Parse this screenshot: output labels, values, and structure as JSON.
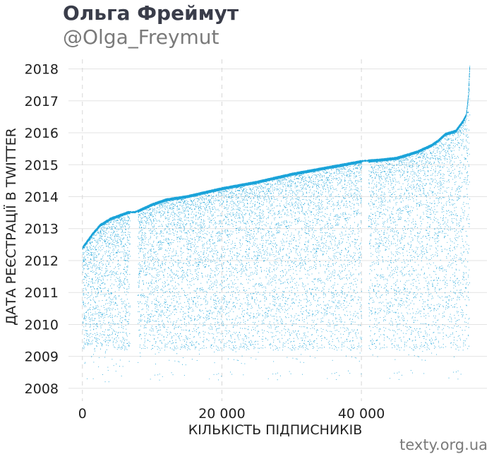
{
  "header": {
    "title": "Ольга Фреймут",
    "subtitle": "@Olga_Freymut"
  },
  "footer": {
    "source": "texty.org.ua"
  },
  "chart_data": {
    "type": "scatter",
    "xlabel": "КІЛЬКІСТЬ ПІДПИСНИКІВ",
    "ylabel": "ДАТА РЕЄСТРАЦІЇ В TWITTER",
    "xlim": [
      -2000,
      58000
    ],
    "ylim": [
      2007.6,
      2018.3
    ],
    "x_ticks": [
      0,
      20000,
      40000
    ],
    "x_tick_labels": [
      "0",
      "20 000",
      "40 000"
    ],
    "y_ticks": [
      2008,
      2009,
      2010,
      2011,
      2012,
      2013,
      2014,
      2015,
      2016,
      2017,
      2018
    ],
    "y_tick_labels": [
      "2018",
      "2017",
      "2016",
      "2015",
      "2014",
      "2013",
      "2012",
      "2011",
      "2010",
      "2009",
      "2008"
    ],
    "grid": {
      "horizontal": true,
      "vertical_dashed": true
    },
    "point_color": "#1aa3d9",
    "total_followers": 55500,
    "upper_envelope": [
      [
        0,
        2012.45
      ],
      [
        500,
        2012.6
      ],
      [
        1500,
        2012.9
      ],
      [
        2500,
        2013.15
      ],
      [
        4000,
        2013.35
      ],
      [
        6500,
        2013.55
      ],
      [
        7500,
        2013.55
      ],
      [
        8000,
        2013.6
      ],
      [
        10000,
        2013.8
      ],
      [
        12000,
        2013.95
      ],
      [
        15000,
        2014.05
      ],
      [
        20000,
        2014.3
      ],
      [
        25000,
        2014.5
      ],
      [
        30000,
        2014.75
      ],
      [
        35000,
        2014.95
      ],
      [
        40000,
        2015.15
      ],
      [
        43000,
        2015.2
      ],
      [
        45000,
        2015.25
      ],
      [
        48000,
        2015.45
      ],
      [
        50000,
        2015.65
      ],
      [
        51000,
        2015.8
      ],
      [
        52000,
        2016.0
      ],
      [
        53500,
        2016.1
      ],
      [
        54500,
        2016.4
      ],
      [
        55000,
        2016.6
      ],
      [
        55300,
        2017.2
      ],
      [
        55500,
        2018.15
      ]
    ],
    "gaps": [
      [
        6800,
        7900
      ],
      [
        40000,
        41000
      ]
    ]
  }
}
